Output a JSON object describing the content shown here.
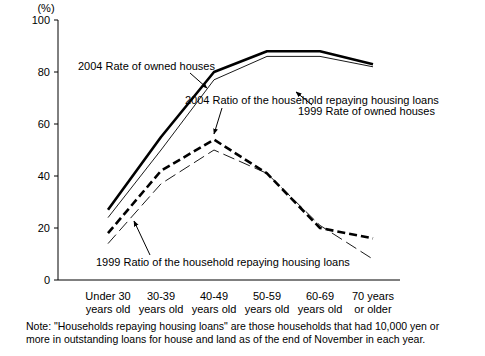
{
  "chart_data": {
    "type": "line",
    "y_label": "(%)",
    "categories": [
      "Under 30\nyears old",
      "30-39\nyears old",
      "40-49\nyears old",
      "50-59\nyears old",
      "60-69\nyears old",
      "70 years\nor older"
    ],
    "series": [
      {
        "name": "2004 Rate of owned houses",
        "color": "#000000",
        "line_style": "solid",
        "values": [
          27,
          55,
          80,
          88,
          88,
          83
        ]
      },
      {
        "name": "1999 Rate of owned houses",
        "color": "#000000",
        "line_style": "solid",
        "values": [
          24,
          50,
          77,
          86,
          86,
          82
        ]
      },
      {
        "name": "2004 Ratio of the household repaying housing loans",
        "color": "#000000",
        "line_style": "dashed",
        "values": [
          18,
          42,
          54,
          41,
          20,
          16
        ]
      },
      {
        "name": "1999 Ratio of the household repaying housing loans",
        "color": "#000000",
        "line_style": "dashed",
        "values": [
          14,
          37,
          50,
          41,
          21,
          8
        ]
      }
    ],
    "ylim": [
      0,
      100
    ],
    "yticks": [
      0,
      20,
      40,
      60,
      80,
      100
    ],
    "grid": false,
    "note": [
      "Note: \"Households repaying housing loans\" are those households that had 10,000 yen or",
      "more in outstanding loans for house and land as of the end of November in each year."
    ]
  }
}
